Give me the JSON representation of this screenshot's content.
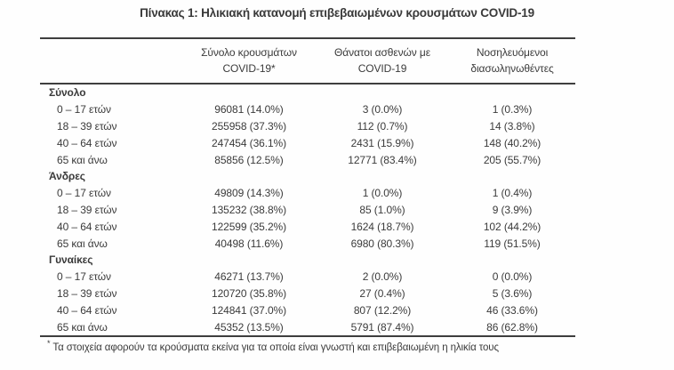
{
  "title": "Πίνακας 1: Ηλικιακή κατανομή επιβεβαιωμένων κρουσμάτων COVID-19",
  "table": {
    "columns": [
      {
        "line1": "Σύνολο κρουσμάτων",
        "line2": "COVID-19*"
      },
      {
        "line1": "Θάνατοι ασθενών με",
        "line2": "COVID-19"
      },
      {
        "line1": "Νοσηλευόμενοι",
        "line2": "διασωληνωθέντες"
      }
    ],
    "sections": [
      {
        "label": "Σύνολο",
        "rows": [
          {
            "label": "0 – 17 ετών",
            "cases": "96081 (14.0%)",
            "deaths": "3 (0.0%)",
            "intubated": "1 (0.3%)"
          },
          {
            "label": "18 – 39 ετών",
            "cases": "255958 (37.3%)",
            "deaths": "112 (0.7%)",
            "intubated": "14 (3.8%)"
          },
          {
            "label": "40 – 64 ετών",
            "cases": "247454 (36.1%)",
            "deaths": "2431 (15.9%)",
            "intubated": "148 (40.2%)"
          },
          {
            "label": "65 και άνω",
            "cases": "85856 (12.5%)",
            "deaths": "12771 (83.4%)",
            "intubated": "205 (55.7%)"
          }
        ]
      },
      {
        "label": "Άνδρες",
        "rows": [
          {
            "label": "0 – 17 ετών",
            "cases": "49809 (14.3%)",
            "deaths": "1 (0.0%)",
            "intubated": "1 (0.4%)"
          },
          {
            "label": "18 – 39 ετών",
            "cases": "135232 (38.8%)",
            "deaths": "85 (1.0%)",
            "intubated": "9 (3.9%)"
          },
          {
            "label": "40 – 64 ετών",
            "cases": "122599 (35.2%)",
            "deaths": "1624 (18.7%)",
            "intubated": "102 (44.2%)"
          },
          {
            "label": "65 και άνω",
            "cases": "40498 (11.6%)",
            "deaths": "6980 (80.3%)",
            "intubated": "119 (51.5%)"
          }
        ]
      },
      {
        "label": "Γυναίκες",
        "rows": [
          {
            "label": "0 – 17 ετών",
            "cases": "46271 (13.7%)",
            "deaths": "2 (0.0%)",
            "intubated": "0 (0.0%)"
          },
          {
            "label": "18 – 39 ετών",
            "cases": "120720 (35.8%)",
            "deaths": "27 (0.4%)",
            "intubated": "5 (3.6%)"
          },
          {
            "label": "40 – 64 ετών",
            "cases": "124841 (37.0%)",
            "deaths": "807 (12.2%)",
            "intubated": "46 (33.6%)"
          },
          {
            "label": "65 και άνω",
            "cases": "45352 (13.5%)",
            "deaths": "5791 (87.4%)",
            "intubated": "86 (62.8%)"
          }
        ]
      }
    ]
  },
  "footnote": {
    "marker": "*",
    "text": "Τα στοιχεία αφορούν τα κρούσματα εκείνα για τα οποία είναι γνωστή και επιβεβαιωμένη η ηλικία τους"
  },
  "colors": {
    "text": "#3b3b3b",
    "rule": "#3e3e3e",
    "background": "#fefefe"
  }
}
